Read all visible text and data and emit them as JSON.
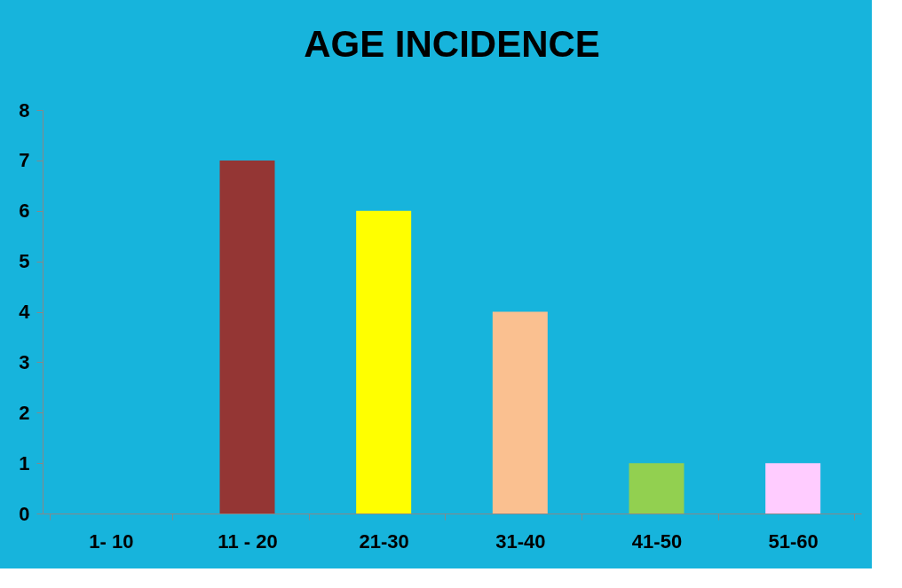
{
  "chart_data": {
    "type": "bar",
    "title": "AGE  INCIDENCE",
    "categories": [
      "1- 10",
      "11 - 20",
      "21-30",
      "31-40",
      "41-50",
      "51-60"
    ],
    "values": [
      0,
      7,
      6,
      4,
      1,
      1
    ],
    "colors": [
      "#943634",
      "#943634",
      "#ffff00",
      "#fac090",
      "#92d050",
      "#ffccff"
    ],
    "ylim": [
      0,
      8
    ],
    "yticks": [
      0,
      1,
      2,
      3,
      4,
      5,
      6,
      7,
      8
    ]
  }
}
